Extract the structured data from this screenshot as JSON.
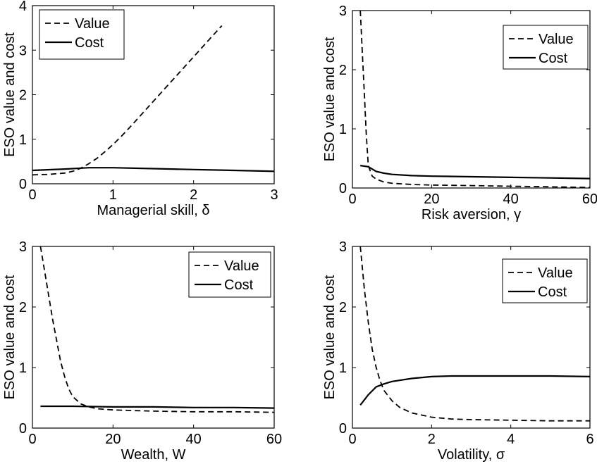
{
  "chart_data": [
    {
      "type": "line",
      "xlabel": "Managerial skill, δ",
      "ylabel": "ESO value and cost",
      "xlim": [
        0,
        3
      ],
      "ylim": [
        0,
        4
      ],
      "xticks": [
        "0",
        "1",
        "2",
        "3"
      ],
      "yticks": [
        "0",
        "1",
        "2",
        "3",
        "4"
      ],
      "legend_position": "top-left",
      "series": [
        {
          "name": "Value",
          "style": "dashed",
          "x": [
            0,
            0.2,
            0.4,
            0.5,
            0.6,
            0.7,
            0.8,
            0.9,
            1.0,
            1.1,
            1.2,
            1.4,
            1.6,
            1.8,
            2.0,
            2.2,
            2.35
          ],
          "y": [
            0.2,
            0.21,
            0.24,
            0.28,
            0.35,
            0.45,
            0.57,
            0.72,
            0.88,
            1.06,
            1.25,
            1.65,
            2.05,
            2.45,
            2.85,
            3.25,
            3.55
          ]
        },
        {
          "name": "Cost",
          "style": "solid",
          "x": [
            0,
            0.4,
            0.7,
            0.8,
            1.0,
            1.5,
            2.0,
            2.5,
            3.0
          ],
          "y": [
            0.3,
            0.33,
            0.36,
            0.36,
            0.36,
            0.34,
            0.32,
            0.3,
            0.28
          ]
        }
      ]
    },
    {
      "type": "line",
      "xlabel": "Risk aversion, γ",
      "ylabel": "ESO value and cost",
      "xlim": [
        0,
        60
      ],
      "ylim": [
        0,
        3
      ],
      "xticks": [
        "0",
        "20",
        "40",
        "60"
      ],
      "yticks": [
        "0",
        "1",
        "2",
        "3"
      ],
      "legend_position": "top-right",
      "series": [
        {
          "name": "Value",
          "style": "dashed",
          "x": [
            2,
            2.5,
            3,
            3.5,
            4,
            5,
            6,
            8,
            10,
            15,
            20,
            30,
            40,
            50,
            60
          ],
          "y": [
            3.0,
            2.3,
            1.6,
            0.9,
            0.38,
            0.2,
            0.15,
            0.1,
            0.08,
            0.06,
            0.05,
            0.04,
            0.03,
            0.02,
            0.01
          ]
        },
        {
          "name": "Cost",
          "style": "solid",
          "x": [
            2,
            4,
            6,
            8,
            10,
            15,
            20,
            30,
            40,
            50,
            60
          ],
          "y": [
            0.38,
            0.36,
            0.28,
            0.25,
            0.23,
            0.21,
            0.2,
            0.19,
            0.18,
            0.17,
            0.16
          ]
        }
      ]
    },
    {
      "type": "line",
      "xlabel": "Wealth, W",
      "ylabel": "ESO value and cost",
      "xlim": [
        0,
        60
      ],
      "ylim": [
        0,
        3
      ],
      "xticks": [
        "0",
        "20",
        "40",
        "60"
      ],
      "yticks": [
        "0",
        "1",
        "2",
        "3"
      ],
      "legend_position": "top-right",
      "series": [
        {
          "name": "Value",
          "style": "dashed",
          "x": [
            2,
            3,
            4,
            5,
            6,
            7,
            8,
            9,
            10,
            12,
            14,
            16,
            20,
            25,
            30,
            40,
            50,
            60
          ],
          "y": [
            3.0,
            2.6,
            2.2,
            1.8,
            1.45,
            1.1,
            0.85,
            0.65,
            0.52,
            0.4,
            0.35,
            0.32,
            0.3,
            0.29,
            0.28,
            0.27,
            0.27,
            0.26
          ]
        },
        {
          "name": "Cost",
          "style": "solid",
          "x": [
            2,
            10,
            20,
            30,
            40,
            50,
            60
          ],
          "y": [
            0.36,
            0.36,
            0.35,
            0.35,
            0.34,
            0.34,
            0.33
          ]
        }
      ]
    },
    {
      "type": "line",
      "xlabel": "Volatility, σ",
      "ylabel": "ESO value and cost",
      "xlim": [
        0,
        6
      ],
      "ylim": [
        0,
        3
      ],
      "xticks": [
        "0",
        "2",
        "4",
        "6"
      ],
      "yticks": [
        "0",
        "1",
        "2",
        "3"
      ],
      "legend_position": "top-right",
      "series": [
        {
          "name": "Value",
          "style": "dashed",
          "x": [
            0.2,
            0.3,
            0.4,
            0.5,
            0.6,
            0.7,
            0.8,
            1.0,
            1.2,
            1.5,
            2.0,
            2.5,
            3.0,
            4.0,
            5.0,
            6.0
          ],
          "y": [
            3.0,
            2.3,
            1.75,
            1.3,
            1.0,
            0.78,
            0.62,
            0.45,
            0.34,
            0.25,
            0.18,
            0.15,
            0.14,
            0.13,
            0.12,
            0.12
          ]
        },
        {
          "name": "Cost",
          "style": "solid",
          "x": [
            0.2,
            0.4,
            0.6,
            0.8,
            1.0,
            1.5,
            2.0,
            2.5,
            3.0,
            4.0,
            5.0,
            6.0
          ],
          "y": [
            0.38,
            0.55,
            0.68,
            0.73,
            0.77,
            0.82,
            0.85,
            0.86,
            0.86,
            0.86,
            0.86,
            0.85
          ]
        }
      ]
    }
  ]
}
